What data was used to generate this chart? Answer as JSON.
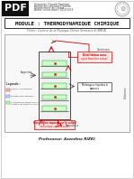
{
  "title": "MODULE : THERMODYNAMIQUE CHIMIQUE",
  "subtitle": "Filiere : Licence de la Physique Chimie Semestre 4 (SMC4)",
  "university_line1": "Universite Chouaib Doukkali",
  "university_line2": "Faculte des sciences El Jadida",
  "university_line3": "Departement de Chimie",
  "university_line4": "Annee universitaire: 2018/2019",
  "professor": "Professeur: Azzedine RIZKI",
  "pdf_bg": "#111111",
  "pdf_text": "#ffffff",
  "page_bg": "#ffffff",
  "red_color": "#cc0000",
  "green_color": "#009900",
  "dark": "#222222",
  "mid": "#555555",
  "light_red_bg": "#ffe8e8",
  "light_green_bg": "#e8ffe8",
  "diag_bg": "#f8f8f8",
  "col_bg": "#eeeeee"
}
